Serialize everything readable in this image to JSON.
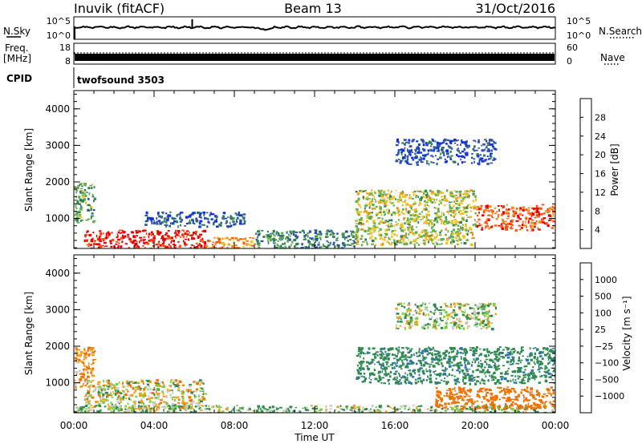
{
  "header": {
    "station": "Inuvik (fitACF)",
    "beam": "Beam 13",
    "date": "31/Oct/2016"
  },
  "strips": {
    "nsky": {
      "label": "N.Sky",
      "tick_top": "10^5",
      "tick_bottom": "10^0"
    },
    "nsearch": {
      "label": "N.Search",
      "tick_top": "10^5",
      "tick_bottom": "10^0"
    },
    "freq": {
      "label_top": "Freq.",
      "label_unit": "[MHz]",
      "tick_top": "18",
      "tick_bottom": "8"
    },
    "nave": {
      "label": "Nave",
      "tick_top": "60",
      "tick_bottom": "0"
    },
    "cpid": {
      "label": "CPID",
      "value": "twofsound 3503"
    }
  },
  "x_axis": {
    "label": "Time UT",
    "ticks": [
      "00:00",
      "04:00",
      "08:00",
      "12:00",
      "16:00",
      "20:00",
      "00:00"
    ],
    "tick_hours": [
      0,
      4,
      8,
      12,
      16,
      20,
      24
    ]
  },
  "panels": {
    "power": {
      "ylabel": "Slant Range [km]",
      "yticks": [
        "1000",
        "2000",
        "3000",
        "4000"
      ],
      "cbar_label": "Power [dB]",
      "cbar_ticks": [
        "4",
        "8",
        "12",
        "16",
        "20",
        "24",
        "28"
      ]
    },
    "velocity": {
      "ylabel": "Slant Range [km]",
      "yticks": [
        "1000",
        "2000",
        "3000",
        "4000"
      ],
      "cbar_label": "Velocity [m s⁻¹]",
      "cbar_ticks": [
        "1000",
        "500",
        "100",
        "25",
        "−25",
        "−100",
        "−500",
        "−1000"
      ]
    }
  },
  "colors": {
    "power_scale": [
      "#1030e0",
      "#2a50a8",
      "#2e7d58",
      "#5fb04a",
      "#f0c020",
      "#f08a20",
      "#ff5010",
      "#e80000"
    ],
    "velocity_scale": [
      "#203aa8",
      "#2f6fb8",
      "#2f8a50",
      "#7ad040",
      "#c8c8c8",
      "#f0a020",
      "#f07000",
      "#f03000",
      "#e00000"
    ]
  },
  "chart_data": [
    {
      "type": "heatmap",
      "title": "Beam 13",
      "xlabel": "Time UT",
      "ylabel": "Slant Range [km]",
      "xlim": [
        0,
        24
      ],
      "ylim": [
        180,
        4500
      ],
      "colorbar_label": "Power [dB]",
      "colorbar_range": [
        0,
        32
      ],
      "regions": [
        {
          "t": [
            0.5,
            6.5
          ],
          "r": [
            200,
            700
          ],
          "value": 30
        },
        {
          "t": [
            6.5,
            9.0
          ],
          "r": [
            200,
            500
          ],
          "value": 22
        },
        {
          "t": [
            0.0,
            1.0
          ],
          "r": [
            900,
            2000
          ],
          "value": 12
        },
        {
          "t": [
            3.5,
            8.5
          ],
          "r": [
            800,
            1200
          ],
          "value": 6
        },
        {
          "t": [
            9.0,
            14.0
          ],
          "r": [
            200,
            700
          ],
          "value": 10
        },
        {
          "t": [
            14.0,
            20.0
          ],
          "r": [
            300,
            1800
          ],
          "value": 16
        },
        {
          "t": [
            20.0,
            24.0
          ],
          "r": [
            700,
            1400
          ],
          "value": 26
        },
        {
          "t": [
            16.0,
            21.0
          ],
          "r": [
            2500,
            3200
          ],
          "value": 5
        }
      ]
    },
    {
      "type": "heatmap",
      "title": "Beam 13",
      "xlabel": "Time UT",
      "ylabel": "Slant Range [km]",
      "xlim": [
        0,
        24
      ],
      "ylim": [
        180,
        4500
      ],
      "colorbar_label": "Velocity [m s⁻¹]",
      "colorbar_range": [
        -1000,
        1000
      ],
      "regions": [
        {
          "t": [
            0.5,
            6.5
          ],
          "r": [
            300,
            1100
          ],
          "value": 0
        },
        {
          "t": [
            0.0,
            24.0
          ],
          "r": [
            180,
            400
          ],
          "value": 80
        },
        {
          "t": [
            0.0,
            1.0
          ],
          "r": [
            900,
            2000
          ],
          "value": -150
        },
        {
          "t": [
            14.0,
            24.0
          ],
          "r": [
            1000,
            2000
          ],
          "value": 400
        },
        {
          "t": [
            18.0,
            24.0
          ],
          "r": [
            300,
            900
          ],
          "value": -300
        },
        {
          "t": [
            16.0,
            21.0
          ],
          "r": [
            2500,
            3200
          ],
          "value": 50
        }
      ]
    }
  ]
}
